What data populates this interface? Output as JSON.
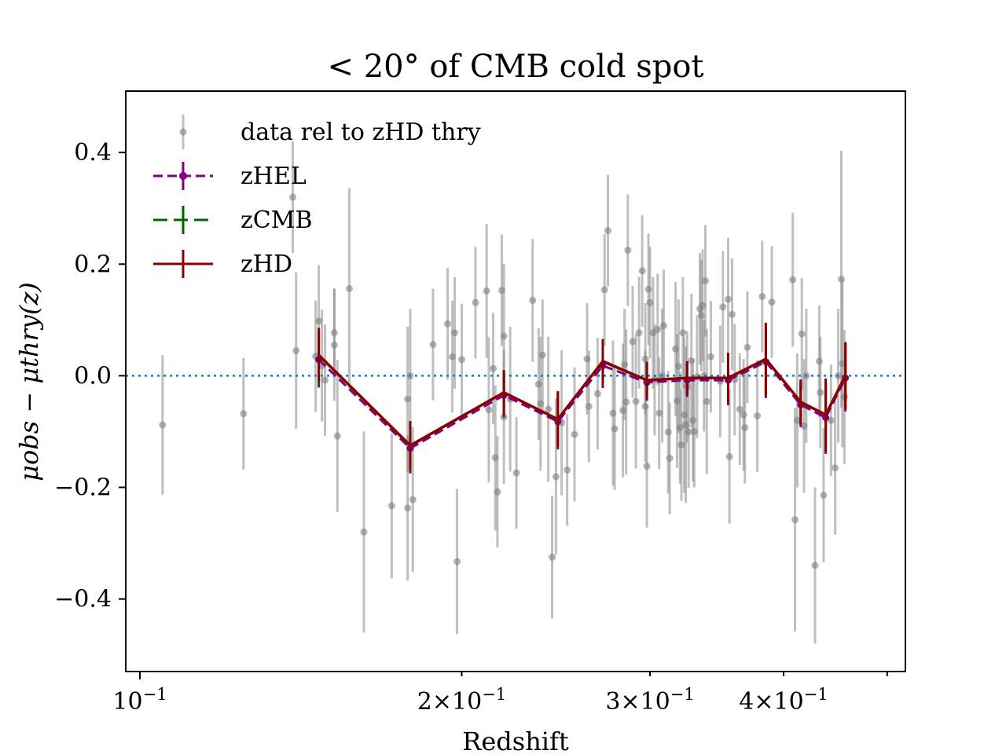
{
  "chart_data": {
    "type": "scatter",
    "title": "< 20° of CMB cold spot",
    "xlabel": "Redshift",
    "ylabel": "μobs − μthry(z)",
    "xscale": "log",
    "xlim": [
      0.097,
      0.52
    ],
    "ylim": [
      -0.53,
      0.51
    ],
    "x_ticks": [
      {
        "value": 0.1,
        "label": "10−1",
        "major": true
      },
      {
        "value": 0.2,
        "label": "2×10−1",
        "major": false
      },
      {
        "value": 0.3,
        "label": "3×10−1",
        "major": false
      },
      {
        "value": 0.4,
        "label": "4×10−1",
        "major": false
      },
      {
        "value": 0.5,
        "label": "",
        "major": false
      }
    ],
    "y_ticks": [
      {
        "value": 0.4,
        "label": "0.4"
      },
      {
        "value": 0.2,
        "label": "0.2"
      },
      {
        "value": 0.0,
        "label": "0.0"
      },
      {
        "value": -0.2,
        "label": "−0.2"
      },
      {
        "value": -0.4,
        "label": "−0.4"
      }
    ],
    "reference_line": {
      "y": 0.0,
      "style": "dotted",
      "color": "#1f77b4"
    },
    "legend": {
      "position": "upper-left",
      "entries": [
        {
          "label": "data rel to zHD thry",
          "series": "data"
        },
        {
          "label": "zHEL",
          "series": "zHEL"
        },
        {
          "label": "zCMB",
          "series": "zCMB"
        },
        {
          "label": "zHD",
          "series": "zHD"
        }
      ]
    },
    "series": [
      {
        "name": "data rel to zHD thry",
        "key": "data",
        "style": "points",
        "color": "#808080",
        "points": [
          [
            0.105,
            -0.088,
            0.125
          ],
          [
            0.125,
            -0.068,
            0.1
          ],
          [
            0.139,
            0.32,
            0.1
          ],
          [
            0.14,
            0.045,
            0.14
          ],
          [
            0.146,
            0.035,
            0.1
          ],
          [
            0.147,
            0.098,
            0.1
          ],
          [
            0.148,
            0.018,
            0.1
          ],
          [
            0.149,
            -0.008,
            0.1
          ],
          [
            0.152,
            0.077,
            0.08
          ],
          [
            0.152,
            0.055,
            0.1
          ],
          [
            0.153,
            -0.108,
            0.136
          ],
          [
            0.157,
            0.156,
            0.18
          ],
          [
            0.162,
            -0.28,
            0.18
          ],
          [
            0.172,
            -0.233,
            0.13
          ],
          [
            0.178,
            -0.042,
            0.13
          ],
          [
            0.178,
            -0.237,
            0.13
          ],
          [
            0.179,
            0.0,
            0.12
          ],
          [
            0.18,
            -0.222,
            0.13
          ],
          [
            0.188,
            0.056,
            0.1
          ],
          [
            0.194,
            0.093,
            0.1
          ],
          [
            0.196,
            0.034,
            0.1
          ],
          [
            0.197,
            0.077,
            0.1
          ],
          [
            0.198,
            -0.333,
            0.13
          ],
          [
            0.2,
            0.029,
            0.1
          ],
          [
            0.206,
            0.131,
            0.1
          ],
          [
            0.211,
            0.152,
            0.12
          ],
          [
            0.212,
            -0.061,
            0.13
          ],
          [
            0.214,
            0.013,
            0.1
          ],
          [
            0.215,
            -0.147,
            0.13
          ],
          [
            0.216,
            -0.208,
            0.1
          ],
          [
            0.218,
            0.153,
            0.1
          ],
          [
            0.219,
            0.071,
            0.13
          ],
          [
            0.219,
            -0.074,
            0.12
          ],
          [
            0.222,
            -0.042,
            0.13
          ],
          [
            0.225,
            -0.174,
            0.1
          ],
          [
            0.233,
            0.135,
            0.11
          ],
          [
            0.236,
            -0.015,
            0.1
          ],
          [
            0.237,
            -0.05,
            0.12
          ],
          [
            0.238,
            0.037,
            0.1
          ],
          [
            0.241,
            -0.06,
            0.13
          ],
          [
            0.243,
            -0.325,
            0.11
          ],
          [
            0.245,
            -0.181,
            0.14
          ],
          [
            0.248,
            -0.084,
            0.13
          ],
          [
            0.251,
            -0.169,
            0.1
          ],
          [
            0.255,
            -0.105,
            0.12
          ],
          [
            0.262,
            0.03,
            0.1
          ],
          [
            0.263,
            -0.055,
            0.1
          ],
          [
            0.268,
            -0.032,
            0.1
          ],
          [
            0.272,
            0.154,
            0.1
          ],
          [
            0.274,
            0.26,
            0.1
          ],
          [
            0.277,
            -0.067,
            0.13
          ],
          [
            0.278,
            -0.095,
            0.11
          ],
          [
            0.283,
            -0.062,
            0.12
          ],
          [
            0.284,
            0.02,
            0.1
          ],
          [
            0.285,
            -0.047,
            0.13
          ],
          [
            0.286,
            0.225,
            0.1
          ],
          [
            0.289,
            0.061,
            0.1
          ],
          [
            0.291,
            -0.046,
            0.12
          ],
          [
            0.293,
            0.077,
            0.1
          ],
          [
            0.295,
            0.188,
            0.1
          ],
          [
            0.297,
            0.03,
            0.1
          ],
          [
            0.297,
            -0.055,
            0.1
          ],
          [
            0.298,
            -0.162,
            0.11
          ],
          [
            0.299,
            0.155,
            0.1
          ],
          [
            0.3,
            0.131,
            0.1
          ],
          [
            0.302,
            0.077,
            0.1
          ],
          [
            0.303,
            -0.007,
            0.1
          ],
          [
            0.305,
            0.083,
            0.1
          ],
          [
            0.306,
            -0.067,
            0.1
          ],
          [
            0.308,
            0.0,
            0.12
          ],
          [
            0.309,
            0.09,
            0.1
          ],
          [
            0.312,
            -0.101,
            0.11
          ],
          [
            0.313,
            -0.148,
            0.1
          ],
          [
            0.317,
            0.048,
            0.12
          ],
          [
            0.318,
            -0.045,
            0.12
          ],
          [
            0.319,
            0.017,
            0.12
          ],
          [
            0.32,
            -0.093,
            0.1
          ],
          [
            0.321,
            -0.124,
            0.1
          ],
          [
            0.322,
            0.077,
            0.1
          ],
          [
            0.323,
            -0.07,
            0.14
          ],
          [
            0.324,
            -0.088,
            0.14
          ],
          [
            0.325,
            -0.02,
            0.1
          ],
          [
            0.326,
            -0.101,
            0.1
          ],
          [
            0.328,
            0.027,
            0.12
          ],
          [
            0.329,
            -0.08,
            0.11
          ],
          [
            0.33,
            -0.1,
            0.1
          ],
          [
            0.332,
            -0.002,
            0.11
          ],
          [
            0.334,
            0.12,
            0.1
          ],
          [
            0.335,
            0.108,
            0.1
          ],
          [
            0.336,
            0.126,
            0.1
          ],
          [
            0.337,
            0.0,
            0.1
          ],
          [
            0.338,
            0.17,
            0.1
          ],
          [
            0.339,
            -0.046,
            0.13
          ],
          [
            0.342,
            0.034,
            0.1
          ],
          [
            0.349,
            -0.01,
            0.1
          ],
          [
            0.351,
            0.123,
            0.1
          ],
          [
            0.355,
            0.137,
            0.11
          ],
          [
            0.356,
            -0.145,
            0.12
          ],
          [
            0.358,
            0.11,
            0.1
          ],
          [
            0.36,
            -0.007,
            0.1
          ],
          [
            0.364,
            -0.06,
            0.1
          ],
          [
            0.367,
            -0.07,
            0.1
          ],
          [
            0.368,
            -0.093,
            0.1
          ],
          [
            0.37,
            0.051,
            0.1
          ],
          [
            0.378,
            -0.072,
            0.1
          ],
          [
            0.382,
            0.142,
            0.1
          ],
          [
            0.39,
            0.132,
            0.1
          ],
          [
            0.408,
            0.172,
            0.12
          ],
          [
            0.41,
            -0.258,
            0.2
          ],
          [
            0.412,
            -0.08,
            0.12
          ],
          [
            0.416,
            0.075,
            0.1
          ],
          [
            0.418,
            -0.09,
            0.12
          ],
          [
            0.42,
            0.0,
            0.12
          ],
          [
            0.428,
            -0.34,
            0.14
          ],
          [
            0.432,
            0.026,
            0.1
          ],
          [
            0.433,
            -0.03,
            0.1
          ],
          [
            0.436,
            -0.214,
            0.12
          ],
          [
            0.443,
            -0.08,
            0.1
          ],
          [
            0.447,
            -0.165,
            0.12
          ],
          [
            0.45,
            0.0,
            0.12
          ],
          [
            0.453,
            0.173,
            0.23
          ],
          [
            0.454,
            0.022,
            0.15
          ],
          [
            0.456,
            -0.038,
            0.12
          ]
        ]
      },
      {
        "name": "zHEL",
        "key": "zHEL",
        "style": "dashed",
        "color": "#800080",
        "points": [
          [
            0.147,
            0.029,
            0.05
          ],
          [
            0.179,
            -0.13,
            0.045
          ],
          [
            0.219,
            -0.035,
            0.04
          ],
          [
            0.246,
            -0.082,
            0.05
          ],
          [
            0.271,
            0.018,
            0.04
          ],
          [
            0.298,
            -0.012,
            0.033
          ],
          [
            0.325,
            -0.008,
            0.03
          ],
          [
            0.355,
            -0.008,
            0.045
          ],
          [
            0.385,
            0.025,
            0.065
          ],
          [
            0.415,
            -0.052,
            0.04
          ],
          [
            0.438,
            -0.075,
            0.065
          ],
          [
            0.457,
            -0.004,
            0.06
          ]
        ]
      },
      {
        "name": "zCMB",
        "key": "zCMB",
        "style": "dashdot",
        "color": "#006400",
        "points": [
          [
            0.147,
            0.036,
            0.05
          ],
          [
            0.179,
            -0.126,
            0.045
          ],
          [
            0.219,
            -0.03,
            0.04
          ],
          [
            0.246,
            -0.078,
            0.05
          ],
          [
            0.271,
            0.025,
            0.04
          ],
          [
            0.298,
            -0.008,
            0.033
          ],
          [
            0.325,
            -0.004,
            0.03
          ],
          [
            0.355,
            -0.004,
            0.045
          ],
          [
            0.385,
            0.029,
            0.065
          ],
          [
            0.415,
            -0.047,
            0.04
          ],
          [
            0.438,
            -0.07,
            0.065
          ],
          [
            0.457,
            0.0,
            0.06
          ]
        ]
      },
      {
        "name": "zHD",
        "key": "zHD",
        "style": "solid",
        "color": "#8b0000",
        "points": [
          [
            0.147,
            0.037,
            0.047
          ],
          [
            0.179,
            -0.125,
            0.043
          ],
          [
            0.219,
            -0.03,
            0.04
          ],
          [
            0.246,
            -0.078,
            0.05
          ],
          [
            0.271,
            0.026,
            0.04
          ],
          [
            0.298,
            -0.008,
            0.033
          ],
          [
            0.325,
            -0.004,
            0.03
          ],
          [
            0.355,
            -0.004,
            0.045
          ],
          [
            0.385,
            0.03,
            0.065
          ],
          [
            0.415,
            -0.047,
            0.04
          ],
          [
            0.438,
            -0.07,
            0.065
          ],
          [
            0.457,
            0.0,
            0.06
          ]
        ]
      }
    ]
  }
}
